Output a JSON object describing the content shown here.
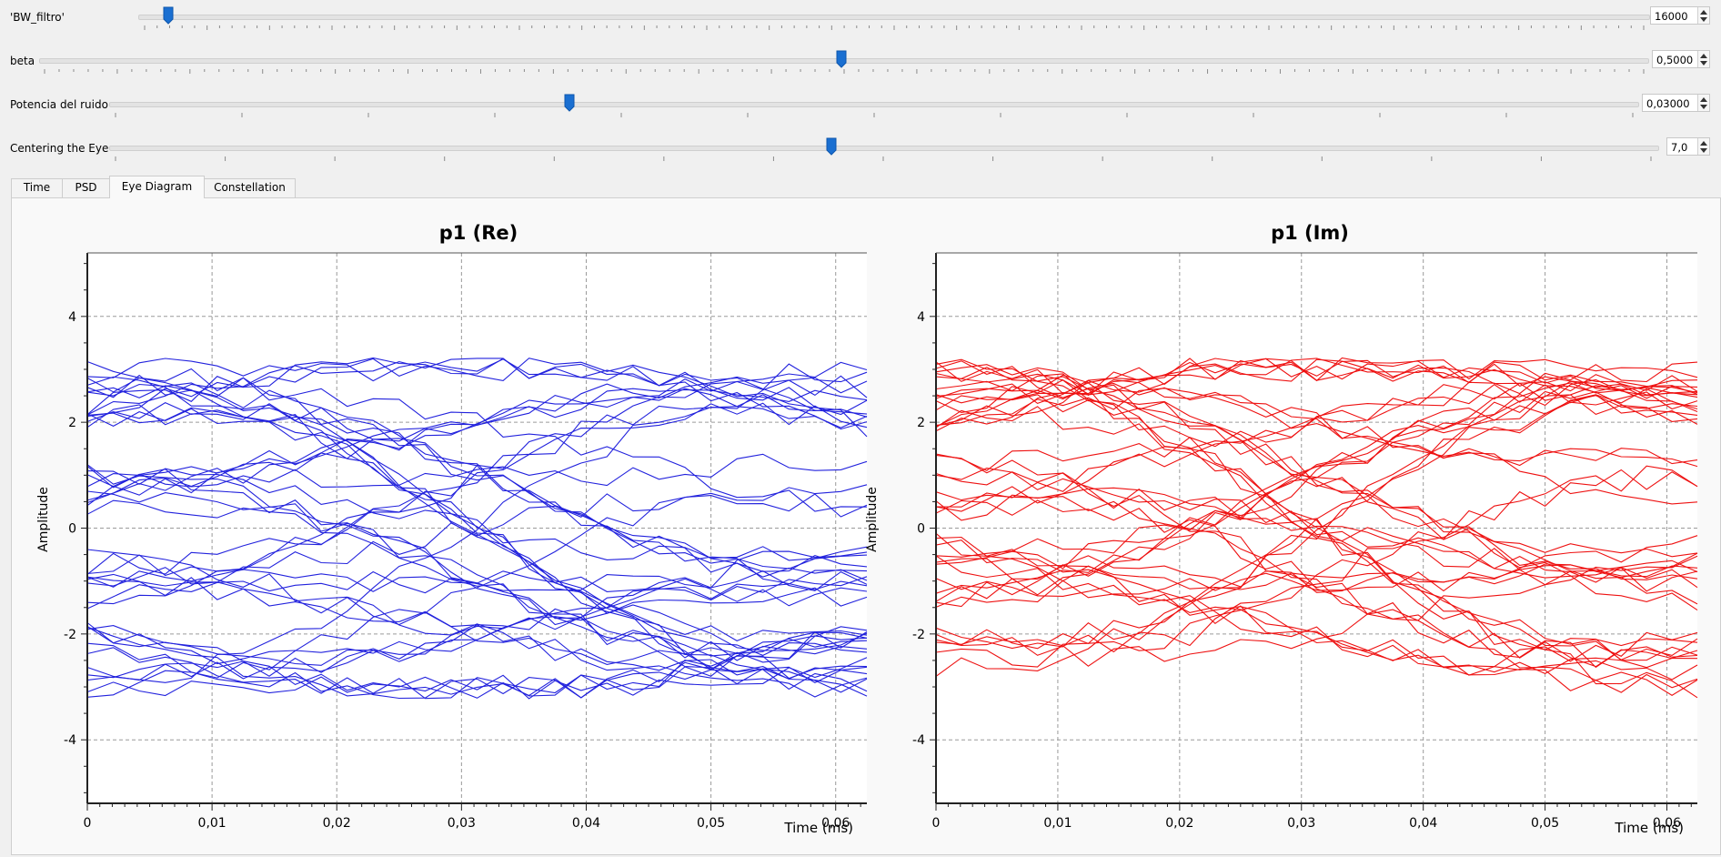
{
  "sliders": [
    {
      "label": "'BW_filtro'",
      "value": "16000",
      "position": 0.047
    },
    {
      "label": "beta",
      "value": "0,5000",
      "position": 0.5
    },
    {
      "label": "Potencia del ruido",
      "value": "0,03000",
      "position": 0.3
    },
    {
      "label": "Centering the Eye",
      "value": "7,0",
      "position": 0.466
    }
  ],
  "tabs": [
    {
      "label": "Time",
      "active": false
    },
    {
      "label": "PSD",
      "active": false
    },
    {
      "label": "Eye Diagram",
      "active": true
    },
    {
      "label": "Constellation",
      "active": false
    }
  ],
  "chart_data": [
    {
      "type": "line",
      "title": "p1 (Re)",
      "xlabel": "Time (ms)",
      "ylabel": "Amplitude",
      "xlim": [
        0,
        0.0625
      ],
      "ylim": [
        -5.2,
        5.2
      ],
      "x_ticks": [
        "0",
        "0,01",
        "0,02",
        "0,03",
        "0,04",
        "0,05",
        "0,06"
      ],
      "y_ticks": [
        "-4",
        "-2",
        "0",
        "2",
        "4"
      ],
      "grid": true,
      "color": "#2222dd",
      "series_count": 44,
      "levels": [
        -3,
        -1,
        1,
        3
      ]
    },
    {
      "type": "line",
      "title": "p1 (Im)",
      "xlabel": "Time (ms)",
      "ylabel": "Amplitude",
      "xlim": [
        0,
        0.0625
      ],
      "ylim": [
        -5.2,
        5.2
      ],
      "x_ticks": [
        "0",
        "0,01",
        "0,02",
        "0,03",
        "0,04",
        "0,05",
        "0,06"
      ],
      "y_ticks": [
        "-4",
        "-2",
        "0",
        "2",
        "4"
      ],
      "grid": true,
      "color": "#ee1111",
      "series_count": 44,
      "levels": [
        -3,
        -1,
        1,
        3
      ]
    }
  ]
}
